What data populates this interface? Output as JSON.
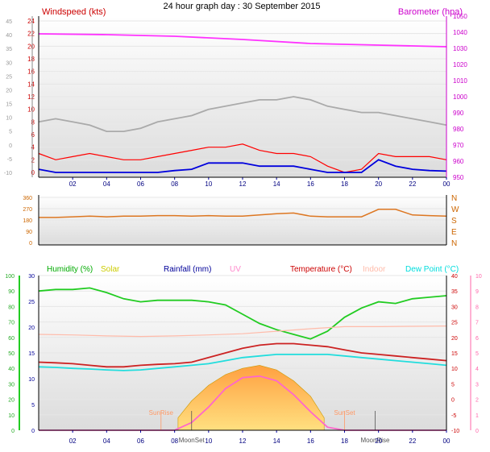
{
  "chart_data": [
    {
      "type": "line",
      "title": "24 hour graph day : 30 September 2015",
      "left_axis_label": "Windspeed (kts)",
      "right_axis_label": "Barometer (hpa)",
      "x_ticks": [
        "02",
        "04",
        "06",
        "08",
        "10",
        "12",
        "14",
        "16",
        "18",
        "20",
        "22",
        "00"
      ],
      "x_range_hours": [
        0,
        24
      ],
      "left_outer_ticks": [
        "-10",
        "-5",
        "0",
        "5",
        "10",
        "15",
        "20",
        "25",
        "30",
        "35",
        "40",
        "45"
      ],
      "left_inner_ticks": [
        "0",
        "2",
        "4",
        "6",
        "8",
        "10",
        "12",
        "14",
        "16",
        "18",
        "20",
        "22",
        "24"
      ],
      "left_inner_range": [
        0,
        24
      ],
      "right_ticks": [
        "950",
        "960",
        "970",
        "980",
        "990",
        "1000",
        "1010",
        "1020",
        "1030",
        "1040",
        "1050"
      ],
      "right_range": [
        950,
        1050
      ],
      "series": [
        {
          "name": "Barometer",
          "color": "#ff33ff",
          "axis": "right",
          "x": [
            0,
            4,
            8,
            12,
            16,
            20,
            24
          ],
          "values": [
            1039,
            1038.5,
            1037.5,
            1035.5,
            1033,
            1032,
            1031
          ]
        },
        {
          "name": "Windspeed",
          "color": "#ff0000",
          "axis": "left_inner",
          "x": [
            0,
            1,
            2,
            3,
            4,
            5,
            6,
            7,
            8,
            9,
            10,
            11,
            12,
            13,
            14,
            15,
            16,
            17,
            18,
            19,
            20,
            21,
            22,
            23,
            24
          ],
          "values": [
            3,
            2,
            2.5,
            3,
            2.5,
            2,
            2,
            2.5,
            3,
            3.5,
            4,
            4,
            4.5,
            3.5,
            3,
            3,
            2.5,
            1,
            0,
            0.5,
            3,
            2.5,
            2.5,
            2.5,
            2
          ]
        },
        {
          "name": "Wind gust",
          "color": "#aaaaaa",
          "axis": "left_inner",
          "x": [
            0,
            1,
            2,
            3,
            4,
            5,
            6,
            7,
            8,
            9,
            10,
            11,
            12,
            13,
            14,
            15,
            16,
            17,
            18,
            19,
            20,
            21,
            22,
            23,
            24
          ],
          "values": [
            8,
            8.5,
            8,
            7.5,
            6.5,
            6.5,
            7,
            8,
            8.5,
            9,
            10,
            10.5,
            11,
            11.5,
            11.5,
            12,
            11.5,
            10.5,
            10,
            9.5,
            9.5,
            9,
            8.5,
            8,
            7.5
          ]
        },
        {
          "name": "Average wind",
          "color": "#0000dd",
          "axis": "left_inner",
          "x": [
            0,
            1,
            2,
            3,
            4,
            5,
            6,
            7,
            8,
            9,
            10,
            11,
            12,
            13,
            14,
            15,
            16,
            17,
            18,
            19,
            20,
            21,
            22,
            23,
            24
          ],
          "values": [
            0.5,
            0,
            0,
            0,
            0,
            0,
            0,
            0,
            0.3,
            0.5,
            1.5,
            1.5,
            1.5,
            1,
            1,
            1,
            0.5,
            0,
            0,
            0,
            2,
            1,
            0.5,
            0.3,
            0.2
          ]
        }
      ]
    },
    {
      "type": "line",
      "title": "",
      "left_ticks": [
        "0",
        "90",
        "180",
        "270",
        "360"
      ],
      "left_range": [
        0,
        360
      ],
      "right_ticks": [
        "N",
        "E",
        "S",
        "W",
        "N"
      ],
      "x_ticks": [],
      "series": [
        {
          "name": "Wind direction",
          "color": "#dd7722",
          "x": [
            0,
            1,
            2,
            3,
            4,
            5,
            6,
            7,
            8,
            9,
            10,
            11,
            12,
            13,
            14,
            15,
            16,
            17,
            18,
            19,
            20,
            21,
            22,
            23,
            24
          ],
          "values": [
            200,
            200,
            205,
            210,
            205,
            210,
            210,
            215,
            215,
            210,
            215,
            210,
            210,
            220,
            230,
            235,
            210,
            205,
            205,
            205,
            265,
            265,
            220,
            215,
            210
          ]
        }
      ]
    },
    {
      "type": "line",
      "legend": [
        {
          "label": "Humidity (%)",
          "color": "#00aa00"
        },
        {
          "label": "Solar",
          "color": "#cccc00"
        },
        {
          "label": "Rainfall (mm)",
          "color": "#000099"
        },
        {
          "label": "UV",
          "color": "#ff88cc"
        },
        {
          "label": "Temperature (°C)",
          "color": "#cc0000"
        },
        {
          "label": "Indoor",
          "color": "#ffbbaa"
        },
        {
          "label": "Dew Point (°C)",
          "color": "#00dddd"
        }
      ],
      "x_ticks": [
        "02",
        "04",
        "06",
        "08",
        "10",
        "12",
        "14",
        "16",
        "18",
        "20",
        "22",
        "00"
      ],
      "outer_left_ticks": [
        "0",
        "10",
        "20",
        "30",
        "40",
        "50",
        "60",
        "70",
        "80",
        "90",
        "100"
      ],
      "inner_left_ticks": [
        "0",
        "5",
        "10",
        "15",
        "20",
        "25",
        "30"
      ],
      "right_temp_ticks": [
        "-10",
        "-5",
        "0",
        "5",
        "10",
        "15",
        "20",
        "25",
        "30",
        "35",
        "40"
      ],
      "right_uv_ticks": [
        "0",
        "1",
        "2",
        "3",
        "4",
        "5",
        "6",
        "7",
        "8",
        "9",
        "10"
      ],
      "temp_range": [
        -10,
        40
      ],
      "humidity_range": [
        0,
        100
      ],
      "uv_range": [
        0,
        10
      ],
      "sun_labels": {
        "sunrise": "SunRise",
        "sunset": "SunSet",
        "moonrise": "MoonRise",
        "moonset": "MoonSet"
      },
      "series": [
        {
          "name": "Humidity",
          "color": "#22cc22",
          "axis": "humidity",
          "x": [
            0,
            1,
            2,
            3,
            4,
            5,
            6,
            7,
            8,
            9,
            10,
            11,
            12,
            13,
            14,
            15,
            16,
            17,
            18,
            19,
            20,
            21,
            22,
            23,
            24
          ],
          "values": [
            90,
            91,
            91,
            92,
            89,
            85,
            83,
            84,
            84,
            84,
            83,
            81,
            75,
            69,
            65,
            62,
            59,
            64,
            73,
            79,
            83,
            82,
            85,
            86,
            87
          ]
        },
        {
          "name": "Indoor",
          "color": "#ffbbaa",
          "axis": "temp",
          "x": [
            0,
            2,
            4,
            6,
            8,
            10,
            12,
            14,
            16,
            18,
            20,
            22,
            24
          ],
          "values": [
            21,
            20.8,
            20.5,
            20.3,
            20.5,
            20.8,
            21.2,
            22,
            22.8,
            23.5,
            23.5,
            23.6,
            23.7
          ]
        },
        {
          "name": "Temperature",
          "color": "#cc2222",
          "axis": "temp",
          "x": [
            0,
            1,
            2,
            3,
            4,
            5,
            6,
            7,
            8,
            9,
            10,
            11,
            12,
            13,
            14,
            15,
            16,
            17,
            18,
            19,
            20,
            21,
            22,
            23,
            24
          ],
          "values": [
            12,
            11.8,
            11.5,
            11,
            10.5,
            10.5,
            11,
            11.3,
            11.5,
            12,
            13.5,
            15,
            16.5,
            17.5,
            18,
            18,
            17.5,
            17,
            16,
            15,
            14.5,
            14,
            13.5,
            13,
            12.5
          ]
        },
        {
          "name": "Dew Point",
          "color": "#22dddd",
          "axis": "temp",
          "x": [
            0,
            1,
            2,
            3,
            4,
            5,
            6,
            7,
            8,
            9,
            10,
            11,
            12,
            13,
            14,
            15,
            16,
            17,
            18,
            19,
            20,
            21,
            22,
            23,
            24
          ],
          "values": [
            10.5,
            10.3,
            10,
            9.8,
            9.5,
            9.3,
            9.5,
            10,
            10.5,
            11,
            11.5,
            12.5,
            13.5,
            14,
            14.5,
            14.5,
            14.5,
            14.5,
            14,
            13.5,
            13,
            12.5,
            12,
            11.5,
            11
          ]
        },
        {
          "name": "UV",
          "color": "#ff66cc",
          "axis": "uv",
          "x": [
            0,
            8,
            9,
            10,
            11,
            12,
            13,
            14,
            15,
            16,
            17,
            18,
            24
          ],
          "values": [
            0,
            0,
            0.5,
            1.5,
            2.7,
            3.4,
            3.5,
            3.2,
            2.3,
            1.2,
            0.2,
            0,
            0
          ]
        },
        {
          "name": "Solar",
          "color": "#ffbb33",
          "axis": "uv",
          "x": [
            8.2,
            9,
            10,
            11,
            12,
            13,
            14,
            15,
            16,
            16.8
          ],
          "values": [
            0.8,
            1.9,
            2.9,
            3.6,
            4,
            4.2,
            3.9,
            3.2,
            2.2,
            0.8
          ]
        }
      ]
    }
  ]
}
